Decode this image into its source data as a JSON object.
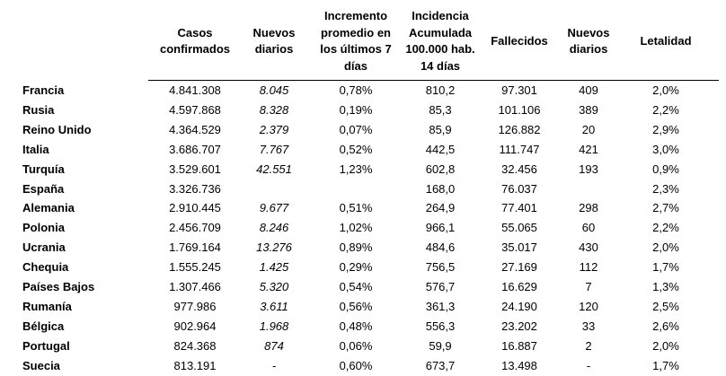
{
  "table": {
    "headers": [
      [
        "Casos",
        "confirmados"
      ],
      [
        "Nuevos",
        "diarios"
      ],
      [
        "Incremento",
        "promedio en",
        "los últimos 7",
        "días"
      ],
      [
        "Incidencia",
        "Acumulada",
        "100.000 hab.",
        "14 días"
      ],
      [
        "Fallecidos"
      ],
      [
        "Nuevos",
        "diarios"
      ],
      [
        "Letalidad"
      ]
    ],
    "rows": [
      [
        "Francia",
        "4.841.308",
        "8.045",
        "0,78%",
        "810,2",
        "97.301",
        "409",
        "2,0%"
      ],
      [
        "Rusia",
        "4.597.868",
        "8.328",
        "0,19%",
        "85,3",
        "101.106",
        "389",
        "2,2%"
      ],
      [
        "Reino Unido",
        "4.364.529",
        "2.379",
        "0,07%",
        "85,9",
        "126.882",
        "20",
        "2,9%"
      ],
      [
        "Italia",
        "3.686.707",
        "7.767",
        "0,52%",
        "442,5",
        "111.747",
        "421",
        "3,0%"
      ],
      [
        "Turquía",
        "3.529.601",
        "42.551",
        "1,23%",
        "602,8",
        "32.456",
        "193",
        "0,9%"
      ],
      [
        "España",
        "3.326.736",
        null,
        null,
        "168,0",
        "76.037",
        null,
        "2,3%"
      ],
      [
        "Alemania",
        "2.910.445",
        "9.677",
        "0,51%",
        "264,9",
        "77.401",
        "298",
        "2,7%"
      ],
      [
        "Polonia",
        "2.456.709",
        "8.246",
        "1,02%",
        "966,1",
        "55.065",
        "60",
        "2,2%"
      ],
      [
        "Ucrania",
        "1.769.164",
        "13.276",
        "0,89%",
        "484,6",
        "35.017",
        "430",
        "2,0%"
      ],
      [
        "Chequia",
        "1.555.245",
        "1.425",
        "0,29%",
        "756,5",
        "27.169",
        "112",
        "1,7%"
      ],
      [
        "Países Bajos",
        "1.307.466",
        "5.320",
        "0,54%",
        "576,7",
        "16.629",
        "7",
        "1,3%"
      ],
      [
        "Rumanía",
        "977.986",
        "3.611",
        "0,56%",
        "361,3",
        "24.190",
        "120",
        "2,5%"
      ],
      [
        "Bélgica",
        "902.964",
        "1.968",
        "0,48%",
        "556,3",
        "23.202",
        "33",
        "2,6%"
      ],
      [
        "Portugal",
        "824.368",
        "874",
        "0,06%",
        "59,9",
        "16.887",
        "2",
        "2,0%"
      ],
      [
        "Suecia",
        "813.191",
        "-",
        "0,60%",
        "673,7",
        "13.498",
        "-",
        "1,7%"
      ]
    ]
  }
}
